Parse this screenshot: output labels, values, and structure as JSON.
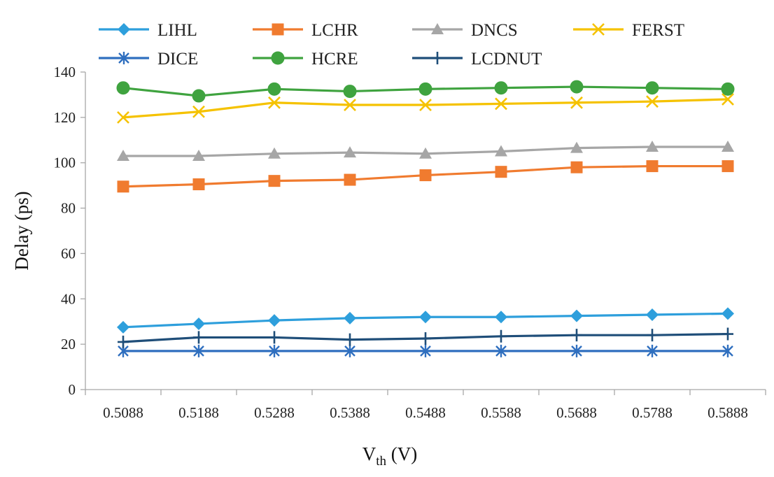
{
  "chart_data": {
    "type": "line",
    "title": "",
    "xlabel": "Vth (V)",
    "xlabel_main": "V",
    "xlabel_sub": "th",
    "xlabel_unit": " (V)",
    "ylabel": "Delay (ps)",
    "ylim": [
      0,
      140
    ],
    "yticks": [
      0,
      20,
      40,
      60,
      80,
      100,
      120,
      140
    ],
    "grid": false,
    "legend_position": "top",
    "categories": [
      "0.5088",
      "0.5188",
      "0.5288",
      "0.5388",
      "0.5488",
      "0.5588",
      "0.5688",
      "0.5788",
      "0.5888"
    ],
    "series": [
      {
        "name": "LIHL",
        "color": "#2e9fdc",
        "marker": "diamond",
        "values": [
          27.5,
          29,
          30.5,
          31.5,
          32,
          32,
          32.5,
          33,
          33.5
        ]
      },
      {
        "name": "LCHR",
        "color": "#f07b2f",
        "marker": "square",
        "values": [
          89.5,
          90.5,
          92,
          92.5,
          94.5,
          96,
          98,
          98.5,
          98.5
        ]
      },
      {
        "name": "DNCS",
        "color": "#a6a6a6",
        "marker": "triangle",
        "values": [
          103,
          103,
          104,
          104.5,
          104,
          105,
          106.5,
          107,
          107
        ]
      },
      {
        "name": "FERST",
        "color": "#f5c200",
        "marker": "x",
        "values": [
          120,
          122.5,
          126.5,
          125.5,
          125.5,
          126,
          126.5,
          127,
          128
        ]
      },
      {
        "name": "DICE",
        "color": "#2f6fbf",
        "marker": "asterisk",
        "values": [
          17,
          17,
          17,
          17,
          17,
          17,
          17,
          17,
          17
        ]
      },
      {
        "name": "HCRE",
        "color": "#3fa33f",
        "marker": "circle",
        "values": [
          133,
          129.5,
          132.5,
          131.5,
          132.5,
          133,
          133.5,
          133,
          132.5
        ]
      },
      {
        "name": "LCDNUT",
        "color": "#1f4e79",
        "marker": "plus",
        "values": [
          21,
          23,
          23,
          22,
          22.5,
          23.5,
          24,
          24,
          24.5
        ]
      }
    ]
  }
}
